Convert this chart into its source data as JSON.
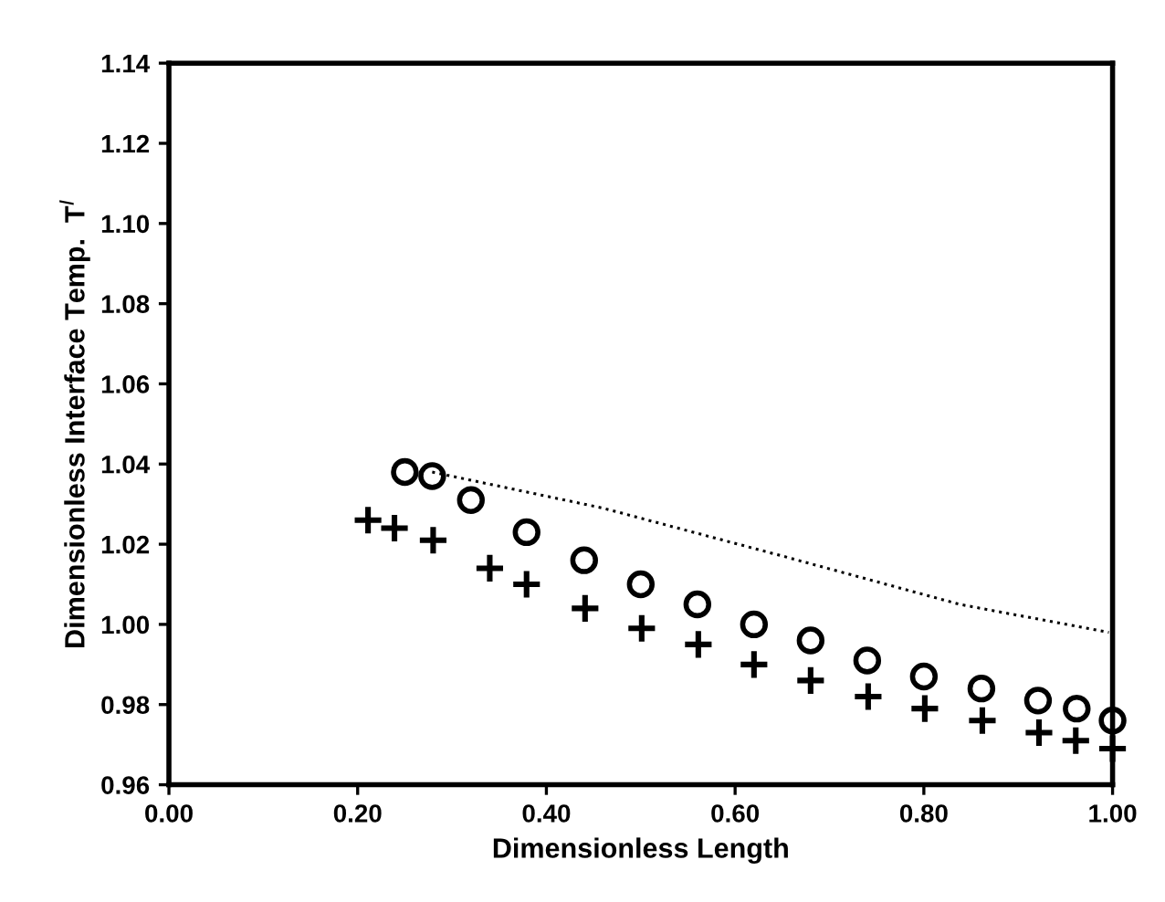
{
  "chart_data": {
    "type": "scatter",
    "xlabel": "Dimensionless Length",
    "ylabel": "Dimensionless Interface Temp.  T$^{I}$",
    "xlim": [
      0,
      1
    ],
    "ylim": [
      0.96,
      1.14
    ],
    "xticks": [
      {
        "value": 0,
        "label": "0.00"
      },
      {
        "value": 0.2,
        "label": "0.20"
      },
      {
        "value": 0.4,
        "label": "0.40"
      },
      {
        "value": 0.6,
        "label": "0.60"
      },
      {
        "value": 0.8,
        "label": "0.80"
      },
      {
        "value": 1,
        "label": "1.00"
      }
    ],
    "yticks": [
      {
        "value": 0.96,
        "label": "0.96"
      },
      {
        "value": 0.98,
        "label": "0.98"
      },
      {
        "value": 1.0,
        "label": "1.00"
      },
      {
        "value": 1.02,
        "label": "1.02"
      },
      {
        "value": 1.04,
        "label": "1.04"
      },
      {
        "value": 1.06,
        "label": "1.06"
      },
      {
        "value": 1.08,
        "label": "1.08"
      },
      {
        "value": 1.1,
        "label": "1.10"
      },
      {
        "value": 1.12,
        "label": "1.12"
      },
      {
        "value": 1.14,
        "label": "1.14"
      }
    ],
    "grid": false,
    "series": [
      {
        "marker": "circle",
        "color": "#000000",
        "x": [
          0.25,
          0.279,
          0.32,
          0.379,
          0.44,
          0.5,
          0.56,
          0.62,
          0.68,
          0.74,
          0.8,
          0.861,
          0.921,
          0.962,
          1.0
        ],
        "values": [
          1.038,
          1.037,
          1.031,
          1.023,
          1.016,
          1.01,
          1.005,
          1.0,
          0.996,
          0.991,
          0.987,
          0.984,
          0.981,
          0.979,
          0.976
        ]
      },
      {
        "marker": "cross",
        "color": "#000000",
        "x": [
          0.211,
          0.239,
          0.28,
          0.34,
          0.379,
          0.441,
          0.501,
          0.561,
          0.62,
          0.68,
          0.741,
          0.801,
          0.862,
          0.922,
          0.961,
          1.0
        ],
        "values": [
          1.026,
          1.024,
          1.021,
          1.014,
          1.01,
          1.004,
          0.999,
          0.995,
          0.99,
          0.986,
          0.982,
          0.979,
          0.976,
          0.973,
          0.971,
          0.969
        ]
      },
      {
        "type": "line",
        "marker": "none",
        "line_style": "dotted",
        "color": "#000000",
        "x": [
          0.279,
          0.46,
          0.651,
          0.838,
          0.996
        ],
        "values": [
          1.038,
          1.029,
          1.017,
          1.005,
          0.998
        ]
      }
    ]
  }
}
